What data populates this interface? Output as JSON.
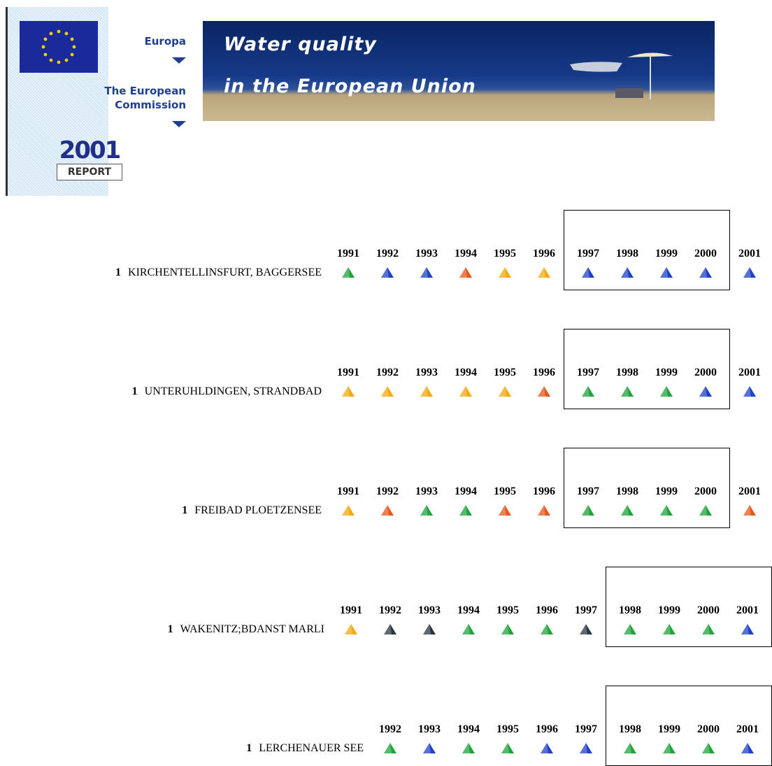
{
  "header": {
    "europa": "Europa",
    "commission": "The European Commission",
    "report_year": "2001",
    "report_label": "REPORT",
    "banner_title": [
      "Water quality",
      "in the European Union"
    ]
  },
  "sites": [
    {
      "rank": "1",
      "name": "KIRCHENTELLINSFURT, BAGGERSEE",
      "years": [
        {
          "year": "1991",
          "color": "#1fa33a",
          "boxed": false
        },
        {
          "year": "1992",
          "color": "#1e40c8",
          "boxed": false
        },
        {
          "year": "1993",
          "color": "#1e40c8",
          "boxed": false
        },
        {
          "year": "1994",
          "color": "#e8561a",
          "boxed": false
        },
        {
          "year": "1995",
          "color": "#f5a810",
          "boxed": false
        },
        {
          "year": "1996",
          "color": "#f5a810",
          "boxed": false
        },
        {
          "year": "1997",
          "color": "#1e40c8",
          "boxed": true
        },
        {
          "year": "1998",
          "color": "#1e40c8",
          "boxed": true
        },
        {
          "year": "1999",
          "color": "#1e40c8",
          "boxed": true
        },
        {
          "year": "2000",
          "color": "#1e40c8",
          "boxed": true
        },
        {
          "year": "2001",
          "color": "#1e40c8",
          "boxed": false
        }
      ]
    },
    {
      "rank": "1",
      "name": "UNTERUHLDINGEN, STRANDBAD",
      "years": [
        {
          "year": "1991",
          "color": "#f5a810",
          "boxed": false
        },
        {
          "year": "1992",
          "color": "#f5a810",
          "boxed": false
        },
        {
          "year": "1993",
          "color": "#f5a810",
          "boxed": false
        },
        {
          "year": "1994",
          "color": "#f5a810",
          "boxed": false
        },
        {
          "year": "1995",
          "color": "#f5a810",
          "boxed": false
        },
        {
          "year": "1996",
          "color": "#e8561a",
          "boxed": false
        },
        {
          "year": "1997",
          "color": "#1fa33a",
          "boxed": true
        },
        {
          "year": "1998",
          "color": "#1fa33a",
          "boxed": true
        },
        {
          "year": "1999",
          "color": "#1fa33a",
          "boxed": true
        },
        {
          "year": "2000",
          "color": "#1e40c8",
          "boxed": true
        },
        {
          "year": "2001",
          "color": "#1e40c8",
          "boxed": false
        }
      ]
    },
    {
      "rank": "1",
      "name": "FREIBAD PLOETZENSEE",
      "years": [
        {
          "year": "1991",
          "color": "#f5a810",
          "boxed": false
        },
        {
          "year": "1992",
          "color": "#e8561a",
          "boxed": false
        },
        {
          "year": "1993",
          "color": "#1fa33a",
          "boxed": false
        },
        {
          "year": "1994",
          "color": "#1fa33a",
          "boxed": false
        },
        {
          "year": "1995",
          "color": "#e8561a",
          "boxed": false
        },
        {
          "year": "1996",
          "color": "#e8561a",
          "boxed": false
        },
        {
          "year": "1997",
          "color": "#1fa33a",
          "boxed": true
        },
        {
          "year": "1998",
          "color": "#1fa33a",
          "boxed": true
        },
        {
          "year": "1999",
          "color": "#1fa33a",
          "boxed": true
        },
        {
          "year": "2000",
          "color": "#1fa33a",
          "boxed": true
        },
        {
          "year": "2001",
          "color": "#e8561a",
          "boxed": false
        }
      ]
    },
    {
      "rank": "1",
      "name": "WAKENITZ;BDANST MARLI",
      "years": [
        {
          "year": "1991",
          "color": "#f5a810",
          "boxed": false
        },
        {
          "year": "1992",
          "color": "#2a3642",
          "boxed": false
        },
        {
          "year": "1993",
          "color": "#2a3642",
          "boxed": false
        },
        {
          "year": "1994",
          "color": "#1fa33a",
          "boxed": false
        },
        {
          "year": "1995",
          "color": "#1fa33a",
          "boxed": false
        },
        {
          "year": "1996",
          "color": "#1fa33a",
          "boxed": false
        },
        {
          "year": "1997",
          "color": "#2a3642",
          "boxed": false
        },
        {
          "year": "1998",
          "color": "#1fa33a",
          "boxed": true
        },
        {
          "year": "1999",
          "color": "#1fa33a",
          "boxed": true
        },
        {
          "year": "2000",
          "color": "#1fa33a",
          "boxed": true
        },
        {
          "year": "2001",
          "color": "#1e40c8",
          "boxed": true
        }
      ]
    },
    {
      "rank": "1",
      "name": "LERCHENAUER SEE",
      "years": [
        {
          "year": "1992",
          "color": "#1fa33a",
          "boxed": false
        },
        {
          "year": "1993",
          "color": "#1e40c8",
          "boxed": false
        },
        {
          "year": "1994",
          "color": "#1fa33a",
          "boxed": false
        },
        {
          "year": "1995",
          "color": "#1fa33a",
          "boxed": false
        },
        {
          "year": "1996",
          "color": "#1e40c8",
          "boxed": false
        },
        {
          "year": "1997",
          "color": "#1e40c8",
          "boxed": false
        },
        {
          "year": "1998",
          "color": "#1fa33a",
          "boxed": true
        },
        {
          "year": "1999",
          "color": "#1fa33a",
          "boxed": true
        },
        {
          "year": "2000",
          "color": "#1fa33a",
          "boxed": true
        },
        {
          "year": "2001",
          "color": "#1e40c8",
          "boxed": true
        }
      ]
    }
  ]
}
